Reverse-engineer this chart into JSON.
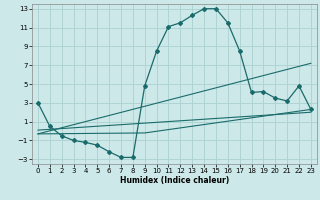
{
  "xlabel": "Humidex (Indice chaleur)",
  "bg_color": "#cde8e8",
  "grid_color": "#b0d4d4",
  "line_color": "#1a6b6b",
  "xlim": [
    -0.5,
    23.5
  ],
  "ylim": [
    -3.5,
    13.5
  ],
  "xticks": [
    0,
    1,
    2,
    3,
    4,
    5,
    6,
    7,
    8,
    9,
    10,
    11,
    12,
    13,
    14,
    15,
    16,
    17,
    18,
    19,
    20,
    21,
    22,
    23
  ],
  "yticks": [
    -3,
    -1,
    1,
    3,
    5,
    7,
    9,
    11,
    13
  ],
  "main_x": [
    0,
    1,
    2,
    3,
    4,
    5,
    6,
    7,
    8,
    9,
    10,
    11,
    12,
    13,
    14,
    15,
    16,
    17,
    18,
    19,
    20,
    21,
    22,
    23
  ],
  "main_y": [
    3.0,
    0.5,
    -0.5,
    -1.0,
    -1.2,
    -1.5,
    -2.2,
    -2.8,
    -2.8,
    4.8,
    8.5,
    11.1,
    11.5,
    12.3,
    13.0,
    13.0,
    11.5,
    8.5,
    4.1,
    4.2,
    3.5,
    3.2,
    4.8,
    2.3
  ],
  "line2_x": [
    0,
    23
  ],
  "line2_y": [
    0.1,
    2.0
  ],
  "line3_x": [
    0,
    23
  ],
  "line3_y": [
    -0.3,
    7.2
  ],
  "line4_x": [
    0,
    9,
    23
  ],
  "line4_y": [
    -0.3,
    -0.2,
    2.3
  ]
}
